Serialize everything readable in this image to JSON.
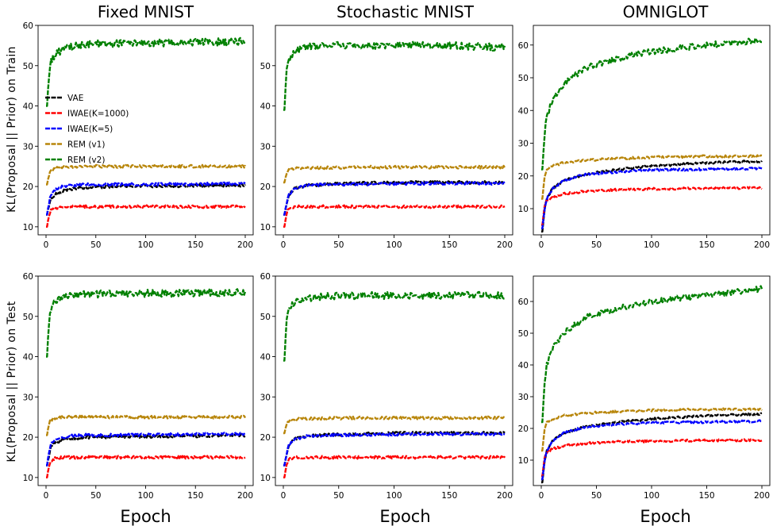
{
  "chart_data": [
    {
      "type": "line",
      "title": "Fixed MNIST",
      "xlabel": "",
      "ylabel": "KL(Proposal || Prior) on Train",
      "xlim": [
        0,
        200
      ],
      "ylim": [
        8,
        60
      ],
      "xticks": [
        0,
        50,
        100,
        150,
        200
      ],
      "yticks": [
        10,
        20,
        30,
        40,
        50,
        60
      ],
      "legend": "upper-left",
      "series": [
        {
          "name": "VAE",
          "color": "#000000",
          "x": [
            1,
            3,
            5,
            10,
            20,
            40,
            70,
            100,
            150,
            200
          ],
          "y": [
            13,
            15.5,
            17,
            18.2,
            19.2,
            19.8,
            20,
            20.1,
            20.2,
            20.3
          ]
        },
        {
          "name": "IWAE(K=1000)",
          "color": "#ff0000",
          "x": [
            1,
            3,
            5,
            10,
            20,
            40,
            70,
            100,
            150,
            200
          ],
          "y": [
            10,
            13,
            14,
            14.6,
            15,
            15,
            15,
            15,
            15,
            15
          ]
        },
        {
          "name": "IWAE(K=5)",
          "color": "#0000ff",
          "x": [
            1,
            3,
            5,
            10,
            20,
            40,
            70,
            100,
            150,
            200
          ],
          "y": [
            13,
            16,
            18,
            19.5,
            20.2,
            20.5,
            20.5,
            20.5,
            20.6,
            20.7
          ]
        },
        {
          "name": "REM (v1)",
          "color": "#b8860b",
          "x": [
            1,
            3,
            5,
            10,
            20,
            40,
            70,
            100,
            150,
            200
          ],
          "y": [
            20.5,
            23,
            24,
            24.5,
            24.8,
            25,
            25,
            25,
            25,
            25
          ]
        },
        {
          "name": "REM (v2)",
          "color": "#008000",
          "x": [
            1,
            3,
            5,
            10,
            20,
            40,
            70,
            100,
            150,
            200
          ],
          "y": [
            40,
            48,
            51,
            53,
            54.5,
            55.3,
            55.5,
            55.6,
            55.8,
            56
          ]
        }
      ]
    },
    {
      "type": "line",
      "title": "Stochastic MNIST",
      "xlabel": "",
      "ylabel": "",
      "xlim": [
        0,
        200
      ],
      "ylim": [
        8,
        60
      ],
      "xticks": [
        0,
        50,
        100,
        150,
        200
      ],
      "yticks": [
        10,
        20,
        30,
        40,
        50
      ],
      "legend": "none",
      "series": [
        {
          "name": "VAE",
          "color": "#000000",
          "x": [
            1,
            3,
            5,
            10,
            20,
            40,
            70,
            100,
            150,
            200
          ],
          "y": [
            13,
            16,
            18,
            19.5,
            20.2,
            20.6,
            20.8,
            21,
            21,
            21
          ]
        },
        {
          "name": "IWAE(K=1000)",
          "color": "#ff0000",
          "x": [
            1,
            3,
            5,
            10,
            20,
            40,
            70,
            100,
            150,
            200
          ],
          "y": [
            10,
            13.5,
            14.5,
            15,
            15,
            15,
            15,
            15,
            15,
            15
          ]
        },
        {
          "name": "IWAE(K=5)",
          "color": "#0000ff",
          "x": [
            1,
            3,
            5,
            10,
            20,
            40,
            70,
            100,
            150,
            200
          ],
          "y": [
            13,
            16,
            18,
            19.5,
            20.2,
            20.5,
            20.6,
            20.7,
            20.8,
            20.8
          ]
        },
        {
          "name": "REM (v1)",
          "color": "#b8860b",
          "x": [
            1,
            3,
            5,
            10,
            20,
            40,
            70,
            100,
            150,
            200
          ],
          "y": [
            21,
            23.5,
            24,
            24.5,
            24.6,
            24.7,
            24.8,
            24.8,
            24.8,
            24.8
          ]
        },
        {
          "name": "REM (v2)",
          "color": "#008000",
          "x": [
            1,
            3,
            5,
            10,
            20,
            40,
            70,
            100,
            150,
            200
          ],
          "y": [
            39,
            50,
            52,
            53.5,
            54.5,
            55,
            55,
            55,
            55,
            54.5
          ]
        }
      ]
    },
    {
      "type": "line",
      "title": "OMNIGLOT",
      "xlabel": "",
      "ylabel": "",
      "xlim": [
        0,
        200
      ],
      "ylim": [
        2,
        66
      ],
      "xticks": [
        0,
        50,
        100,
        150,
        200
      ],
      "yticks": [
        10,
        20,
        30,
        40,
        50,
        60
      ],
      "legend": "none",
      "series": [
        {
          "name": "VAE",
          "color": "#000000",
          "x": [
            1,
            3,
            5,
            10,
            20,
            40,
            70,
            100,
            150,
            200
          ],
          "y": [
            3,
            10,
            13,
            16,
            18.5,
            20.5,
            22,
            23,
            24,
            24.5
          ]
        },
        {
          "name": "IWAE(K=1000)",
          "color": "#ff0000",
          "x": [
            1,
            3,
            5,
            10,
            20,
            40,
            70,
            100,
            150,
            200
          ],
          "y": [
            5,
            11,
            12.5,
            13.5,
            14.5,
            15.3,
            15.8,
            16,
            16.2,
            16.3
          ]
        },
        {
          "name": "IWAE(K=5)",
          "color": "#0000ff",
          "x": [
            1,
            3,
            5,
            10,
            20,
            40,
            70,
            100,
            150,
            200
          ],
          "y": [
            4,
            10,
            13,
            16,
            18.5,
            20.5,
            21.3,
            21.8,
            22,
            22.3
          ]
        },
        {
          "name": "REM (v1)",
          "color": "#b8860b",
          "x": [
            1,
            3,
            5,
            10,
            20,
            40,
            70,
            100,
            150,
            200
          ],
          "y": [
            13,
            20,
            22,
            23,
            24,
            24.8,
            25.3,
            25.7,
            26,
            26
          ]
        },
        {
          "name": "REM (v2)",
          "color": "#008000",
          "x": [
            1,
            3,
            5,
            10,
            20,
            40,
            70,
            100,
            150,
            200
          ],
          "y": [
            22,
            33,
            38,
            43,
            48,
            53,
            56,
            58,
            60,
            61.5
          ]
        }
      ]
    },
    {
      "type": "line",
      "title": "",
      "xlabel": "Epoch",
      "ylabel": "KL(Proposal || Prior) on Test",
      "xlim": [
        0,
        200
      ],
      "ylim": [
        8,
        60
      ],
      "xticks": [
        0,
        50,
        100,
        150,
        200
      ],
      "yticks": [
        10,
        20,
        30,
        40,
        50,
        60
      ],
      "legend": "none",
      "series": [
        {
          "name": "VAE",
          "color": "#000000",
          "x": [
            1,
            3,
            5,
            10,
            20,
            40,
            70,
            100,
            150,
            200
          ],
          "y": [
            13,
            15.5,
            17.5,
            18.8,
            19.5,
            20,
            20.1,
            20.2,
            20.3,
            20.5
          ]
        },
        {
          "name": "IWAE(K=1000)",
          "color": "#ff0000",
          "x": [
            1,
            3,
            5,
            10,
            20,
            40,
            70,
            100,
            150,
            200
          ],
          "y": [
            10,
            13,
            14.2,
            14.8,
            15,
            15,
            15,
            15,
            15,
            15
          ]
        },
        {
          "name": "IWAE(K=5)",
          "color": "#0000ff",
          "x": [
            1,
            3,
            5,
            10,
            20,
            40,
            70,
            100,
            150,
            200
          ],
          "y": [
            13,
            16.5,
            18.5,
            19.5,
            20.2,
            20.5,
            20.5,
            20.6,
            20.7,
            20.8
          ]
        },
        {
          "name": "REM (v1)",
          "color": "#b8860b",
          "x": [
            1,
            3,
            5,
            10,
            20,
            40,
            70,
            100,
            150,
            200
          ],
          "y": [
            20.5,
            23.5,
            24.3,
            24.8,
            25,
            25,
            25,
            25,
            25,
            25
          ]
        },
        {
          "name": "REM (v2)",
          "color": "#008000",
          "x": [
            1,
            3,
            5,
            10,
            20,
            40,
            70,
            100,
            150,
            200
          ],
          "y": [
            40,
            49,
            52,
            54,
            55,
            55.5,
            55.6,
            55.7,
            55.8,
            56
          ]
        }
      ]
    },
    {
      "type": "line",
      "title": "",
      "xlabel": "Epoch",
      "ylabel": "",
      "xlim": [
        0,
        200
      ],
      "ylim": [
        8,
        60
      ],
      "xticks": [
        0,
        50,
        100,
        150,
        200
      ],
      "yticks": [
        10,
        20,
        30,
        40,
        50,
        60
      ],
      "legend": "none",
      "series": [
        {
          "name": "VAE",
          "color": "#000000",
          "x": [
            1,
            3,
            5,
            10,
            20,
            40,
            70,
            100,
            150,
            200
          ],
          "y": [
            13,
            16,
            18,
            19.5,
            20.2,
            20.6,
            20.8,
            21,
            21,
            21
          ]
        },
        {
          "name": "IWAE(K=1000)",
          "color": "#ff0000",
          "x": [
            1,
            3,
            5,
            10,
            20,
            40,
            70,
            100,
            150,
            200
          ],
          "y": [
            10,
            13.5,
            14.5,
            15,
            15,
            15,
            15,
            15,
            15,
            15
          ]
        },
        {
          "name": "IWAE(K=5)",
          "color": "#0000ff",
          "x": [
            1,
            3,
            5,
            10,
            20,
            40,
            70,
            100,
            150,
            200
          ],
          "y": [
            13,
            16,
            18,
            19.5,
            20.2,
            20.5,
            20.6,
            20.7,
            20.8,
            20.8
          ]
        },
        {
          "name": "REM (v1)",
          "color": "#b8860b",
          "x": [
            1,
            3,
            5,
            10,
            20,
            40,
            70,
            100,
            150,
            200
          ],
          "y": [
            21,
            23.5,
            24,
            24.4,
            24.6,
            24.7,
            24.8,
            24.8,
            24.8,
            24.8
          ]
        },
        {
          "name": "REM (v2)",
          "color": "#008000",
          "x": [
            1,
            3,
            5,
            10,
            20,
            40,
            70,
            100,
            150,
            200
          ],
          "y": [
            39,
            50,
            52,
            53.5,
            54.5,
            55,
            55.2,
            55.2,
            55.2,
            55.2
          ]
        }
      ]
    },
    {
      "type": "line",
      "title": "",
      "xlabel": "Epoch",
      "ylabel": "",
      "xlim": [
        0,
        200
      ],
      "ylim": [
        2,
        68
      ],
      "xticks": [
        0,
        50,
        100,
        150,
        200
      ],
      "yticks": [
        10,
        20,
        30,
        40,
        50,
        60
      ],
      "legend": "none",
      "series": [
        {
          "name": "VAE",
          "color": "#000000",
          "x": [
            1,
            3,
            5,
            10,
            20,
            40,
            70,
            100,
            150,
            200
          ],
          "y": [
            3,
            10,
            13,
            16,
            18.5,
            20.5,
            22,
            23,
            24,
            24.5
          ]
        },
        {
          "name": "IWAE(K=1000)",
          "color": "#ff0000",
          "x": [
            1,
            3,
            5,
            10,
            20,
            40,
            70,
            100,
            150,
            200
          ],
          "y": [
            5,
            11,
            12.5,
            13.5,
            14.5,
            15.3,
            15.8,
            16,
            16.2,
            16.3
          ]
        },
        {
          "name": "IWAE(K=5)",
          "color": "#0000ff",
          "x": [
            1,
            3,
            5,
            10,
            20,
            40,
            70,
            100,
            150,
            200
          ],
          "y": [
            4,
            10,
            13,
            16,
            18.5,
            20.5,
            21.3,
            21.8,
            22,
            22.3
          ]
        },
        {
          "name": "REM (v1)",
          "color": "#b8860b",
          "x": [
            1,
            3,
            5,
            10,
            20,
            40,
            70,
            100,
            150,
            200
          ],
          "y": [
            13,
            20,
            22,
            23,
            24,
            24.8,
            25.3,
            25.7,
            26,
            26
          ]
        },
        {
          "name": "REM (v2)",
          "color": "#008000",
          "x": [
            1,
            3,
            5,
            10,
            20,
            40,
            70,
            100,
            150,
            200
          ],
          "y": [
            22,
            35,
            40,
            45,
            50,
            55,
            58,
            60,
            62,
            64
          ]
        }
      ]
    }
  ]
}
